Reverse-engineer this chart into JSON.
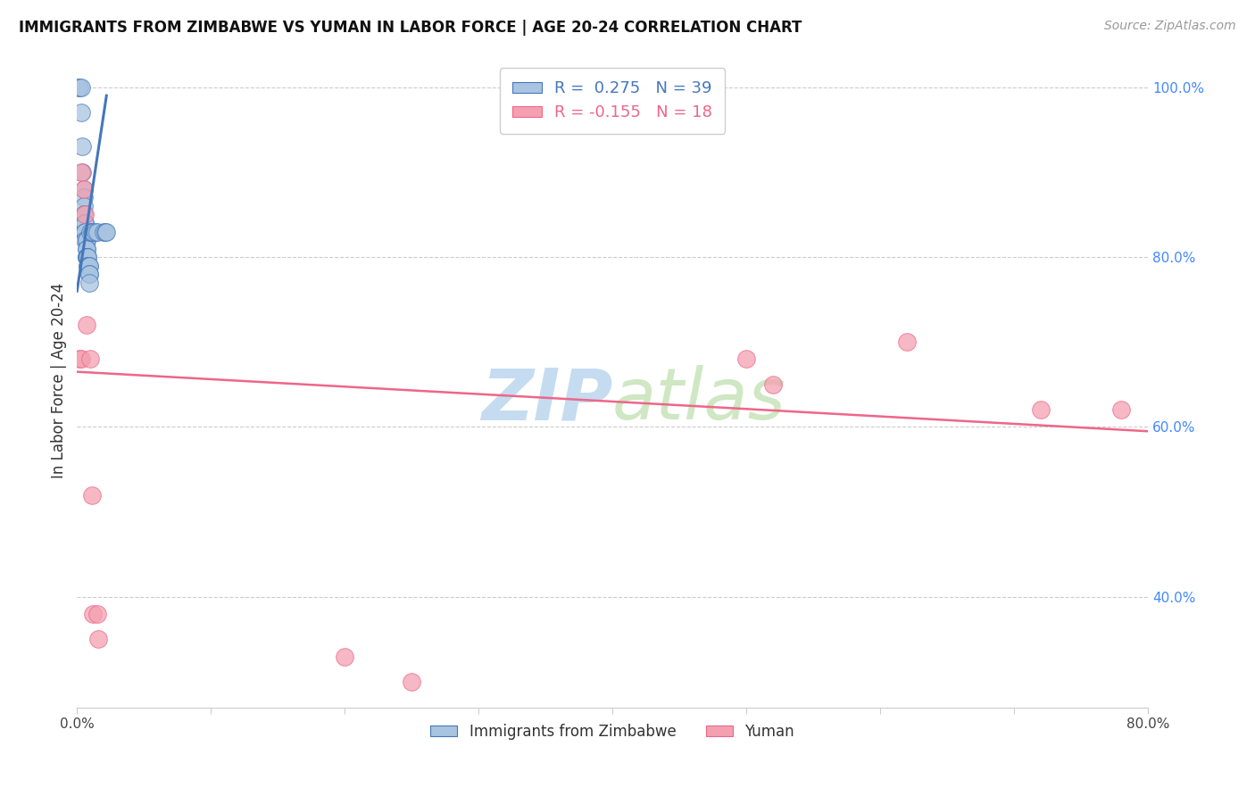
{
  "title": "IMMIGRANTS FROM ZIMBABWE VS YUMAN IN LABOR FORCE | AGE 20-24 CORRELATION CHART",
  "source": "Source: ZipAtlas.com",
  "ylabel": "In Labor Force | Age 20-24",
  "xlim": [
    0.0,
    0.8
  ],
  "ylim": [
    0.27,
    1.04
  ],
  "xticks": [
    0.0,
    0.1,
    0.2,
    0.3,
    0.4,
    0.5,
    0.6,
    0.7,
    0.8
  ],
  "xtick_labels": [
    "0.0%",
    "",
    "",
    "",
    "",
    "",
    "",
    "",
    "80.0%"
  ],
  "yticks_right": [
    0.4,
    0.6,
    0.8,
    1.0
  ],
  "ytick_labels_right": [
    "40.0%",
    "60.0%",
    "80.0%",
    "100.0%"
  ],
  "blue_R": 0.275,
  "blue_N": 39,
  "pink_R": -0.155,
  "pink_N": 18,
  "blue_color": "#A8C4E0",
  "pink_color": "#F4A0B0",
  "blue_line_color": "#4477BB",
  "pink_line_color": "#EE6688",
  "watermark_color": "#C5DCF0",
  "legend_label_blue": "Immigrants from Zimbabwe",
  "legend_label_pink": "Yuman",
  "blue_x": [
    0.001,
    0.002,
    0.003,
    0.003,
    0.004,
    0.004,
    0.005,
    0.005,
    0.005,
    0.005,
    0.006,
    0.006,
    0.006,
    0.006,
    0.006,
    0.007,
    0.007,
    0.007,
    0.007,
    0.007,
    0.007,
    0.007,
    0.008,
    0.008,
    0.008,
    0.008,
    0.009,
    0.009,
    0.009,
    0.009,
    0.009,
    0.01,
    0.011,
    0.012,
    0.014,
    0.015,
    0.02,
    0.021,
    0.022
  ],
  "blue_y": [
    1.0,
    1.0,
    1.0,
    0.97,
    0.93,
    0.9,
    0.88,
    0.87,
    0.86,
    0.85,
    0.84,
    0.84,
    0.83,
    0.83,
    0.82,
    0.82,
    0.82,
    0.81,
    0.81,
    0.8,
    0.8,
    0.8,
    0.8,
    0.8,
    0.79,
    0.79,
    0.79,
    0.79,
    0.78,
    0.78,
    0.77,
    0.83,
    0.83,
    0.83,
    0.83,
    0.83,
    0.83,
    0.83,
    0.83
  ],
  "pink_x": [
    0.002,
    0.003,
    0.003,
    0.005,
    0.006,
    0.007,
    0.01,
    0.011,
    0.012,
    0.015,
    0.016,
    0.2,
    0.25,
    0.5,
    0.52,
    0.62,
    0.72,
    0.78
  ],
  "pink_y": [
    0.68,
    0.68,
    0.9,
    0.88,
    0.85,
    0.72,
    0.68,
    0.52,
    0.38,
    0.38,
    0.35,
    0.33,
    0.3,
    0.68,
    0.65,
    0.7,
    0.62,
    0.62
  ],
  "blue_trendline_x": [
    0.0,
    0.022
  ],
  "blue_trendline_y": [
    0.76,
    0.99
  ],
  "pink_trendline_x": [
    0.0,
    0.8
  ],
  "pink_trendline_y": [
    0.665,
    0.595
  ]
}
